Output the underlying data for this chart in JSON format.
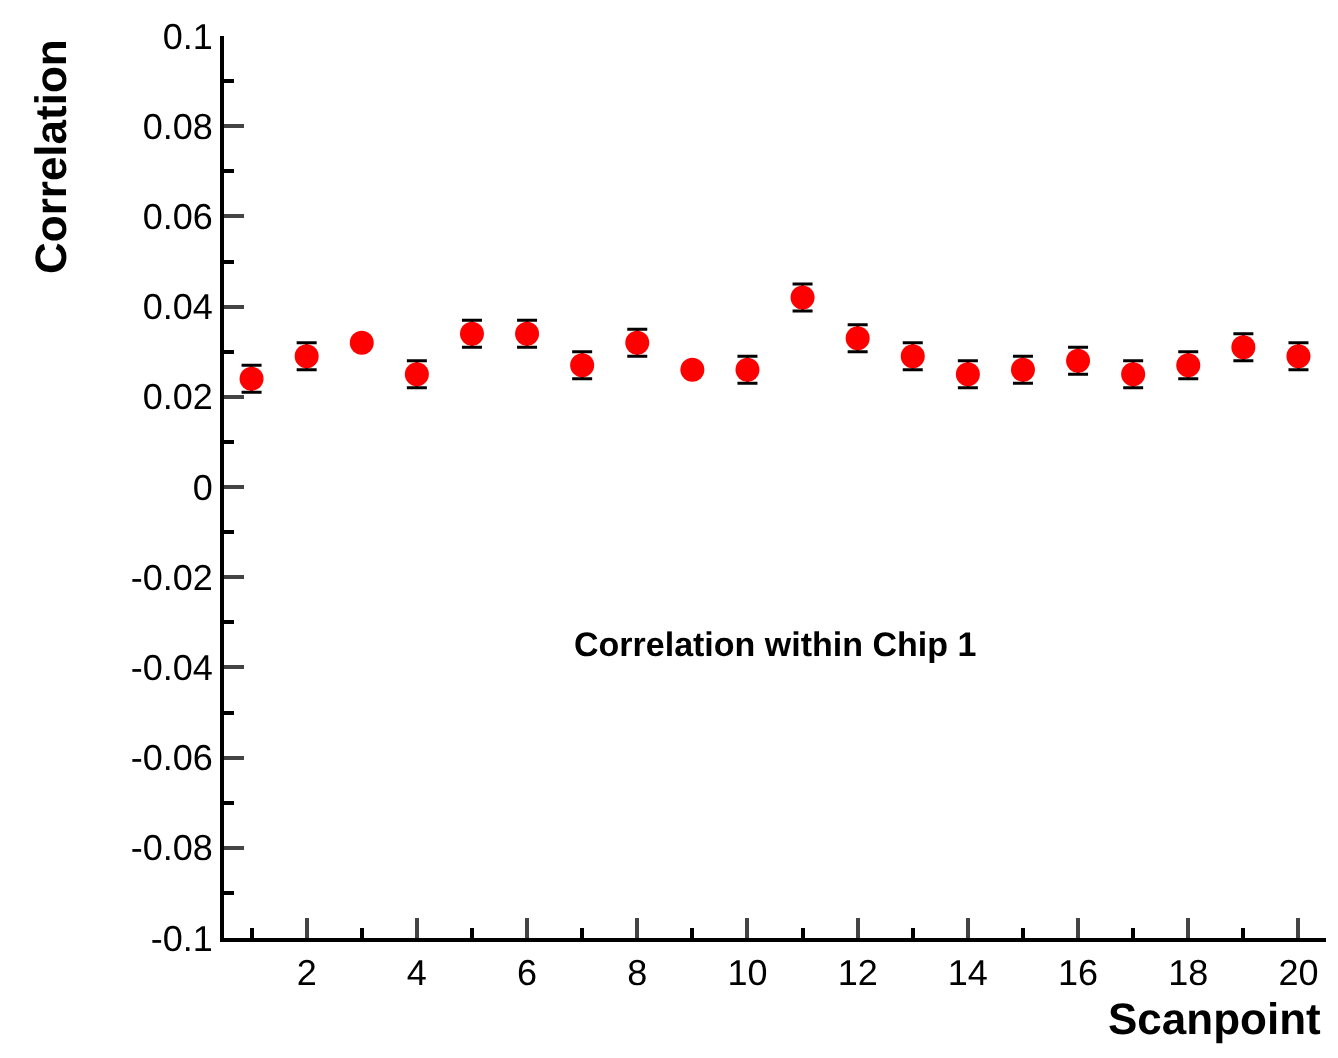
{
  "chart_data": {
    "type": "scatter",
    "xlabel": "Scanpoint",
    "ylabel": "Correlation",
    "annotations": [
      "Correlation within Chip 1"
    ],
    "x": [
      1,
      2,
      3,
      4,
      5,
      6,
      7,
      8,
      9,
      10,
      11,
      12,
      13,
      14,
      15,
      16,
      17,
      18,
      19,
      20
    ],
    "series": [
      {
        "color": "#ff0000",
        "values": [
          0.024,
          0.029,
          0.032,
          0.025,
          0.034,
          0.034,
          0.027,
          0.032,
          0.026,
          0.026,
          0.042,
          0.033,
          0.029,
          0.025,
          0.026,
          0.028,
          0.025,
          0.027,
          0.031,
          0.029
        ],
        "errors": [
          0.003,
          0.003,
          null,
          0.003,
          0.003,
          0.003,
          0.003,
          0.003,
          null,
          0.003,
          0.003,
          0.003,
          0.003,
          0.003,
          0.003,
          0.003,
          0.003,
          0.003,
          0.003,
          0.003
        ]
      }
    ],
    "xlim": [
      0.5,
      20.5
    ],
    "xticks": [
      2,
      4,
      6,
      8,
      10,
      12,
      14,
      16,
      18,
      20
    ],
    "ylim": [
      -0.1,
      0.1
    ],
    "yticks": [
      -0.1,
      -0.08,
      -0.06,
      -0.04,
      -0.02,
      0,
      0.02,
      0.04,
      0.06,
      0.08,
      0.1
    ],
    "marker": "circle"
  }
}
